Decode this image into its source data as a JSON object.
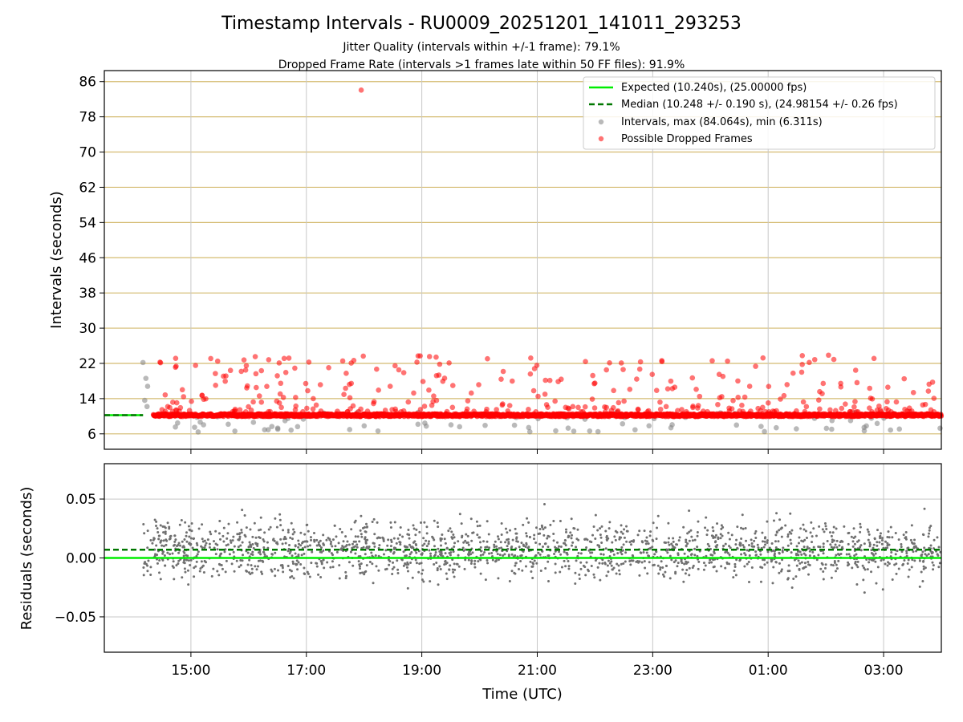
{
  "chart_data": [
    {
      "type": "scatter",
      "title": "Timestamp Intervals - RU0009_20251201_141011_293253",
      "subtitle_lines": [
        "Jitter Quality (intervals within +/-1 frame): 79.1%",
        "Dropped Frame Rate (intervals >1 frames late within 50 FF files): 91.9%"
      ],
      "xlabel": "",
      "ylabel": "Intervals (seconds)",
      "x_unit": "hours since 13:30 UTC",
      "xlim": [
        0,
        14.5
      ],
      "ylim": [
        2.5,
        88.5
      ],
      "yticks": [
        6,
        14,
        22,
        30,
        38,
        46,
        54,
        62,
        70,
        78,
        86
      ],
      "y_grid_color": "#d4bb70",
      "x_grid": true,
      "legend_position": "upper-right",
      "legend": [
        {
          "label": "Expected (10.240s), (25.00000 fps)",
          "style": "line",
          "color": "#00ee00"
        },
        {
          "label": "Median (10.248 +/- 0.190 s), (24.98154 +/- 0.26 fps)",
          "style": "dashed",
          "color": "#007700"
        },
        {
          "label": "Intervals, max (84.064s), min (6.311s)",
          "style": "dot",
          "color": "#808080"
        },
        {
          "label": "Possible Dropped Frames",
          "style": "dot",
          "color": "#ff0000"
        }
      ],
      "expected_value": 10.24,
      "median_value": 10.248,
      "interval_range_x": [
        0.67,
        14.5
      ],
      "dropped_range_x": [
        0.85,
        14.5
      ],
      "annotated_points": [
        {
          "name": "max-interval",
          "x": 4.45,
          "y": 84.064
        },
        {
          "name": "min-interval",
          "x": 2.1,
          "y": 6.311
        }
      ],
      "series": [
        {
          "name": "Intervals",
          "color": "#808080",
          "y_center": 10.24,
          "count": 90
        },
        {
          "name": "Possible Dropped Frames",
          "color": "#ff0000",
          "count": 330
        }
      ]
    },
    {
      "type": "scatter",
      "xlabel": "Time (UTC)",
      "ylabel": "Residuals (seconds)",
      "xlim": [
        0,
        14.5
      ],
      "ylim": [
        -0.08,
        0.08
      ],
      "yticks": [
        0.05,
        0.0,
        -0.05
      ],
      "ytick_labels": [
        "0.05",
        "0.00",
        "−0.05"
      ],
      "xticks": [
        1.5,
        3.5,
        5.5,
        7.5,
        9.5,
        11.5,
        13.5
      ],
      "xtick_labels": [
        "15:00",
        "17:00",
        "19:00",
        "21:00",
        "23:00",
        "01:00",
        "03:00"
      ],
      "expected_residual": 0.0,
      "median_residual": 0.007,
      "series": [
        {
          "name": "Residuals",
          "color": "#707070",
          "x_range": [
            0.67,
            14.5
          ],
          "count": 1900
        }
      ]
    }
  ]
}
